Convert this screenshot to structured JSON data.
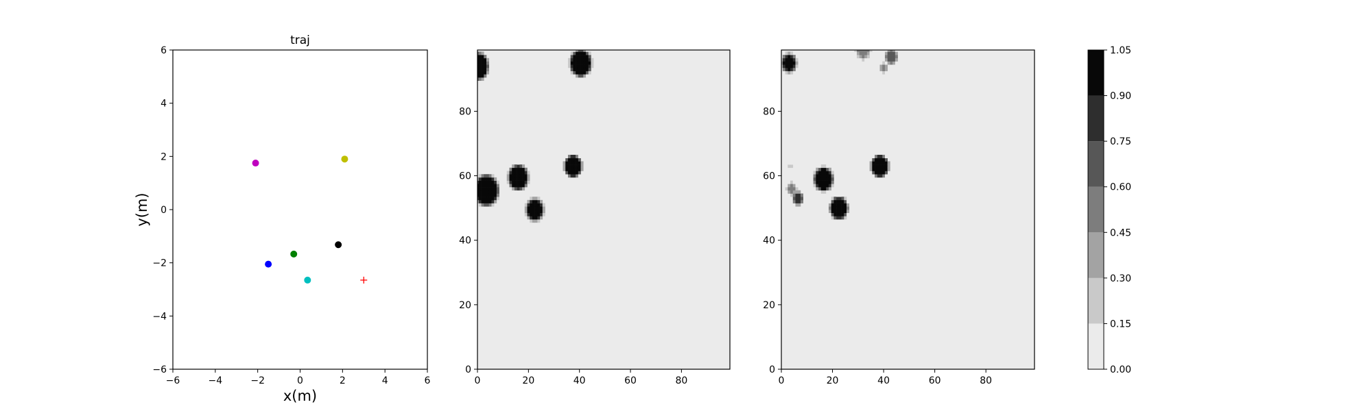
{
  "chart_data": [
    {
      "type": "scatter",
      "title": "traj",
      "xlabel": "x(m)",
      "ylabel": "y(m)",
      "xlim": [
        -6,
        6
      ],
      "ylim": [
        -6,
        6
      ],
      "xticks": [
        -6,
        -4,
        -2,
        0,
        2,
        4,
        6
      ],
      "yticks": [
        -6,
        -4,
        -2,
        0,
        2,
        4,
        6
      ],
      "xtick_labels": [
        "−6",
        "−4",
        "−2",
        "0",
        "2",
        "4",
        "6"
      ],
      "ytick_labels": [
        "−6",
        "−4",
        "−2",
        "0",
        "2",
        "4",
        "6"
      ],
      "grid": false,
      "points": [
        {
          "x": -2.1,
          "y": 1.75,
          "color": "#bf00bf",
          "marker": "circle"
        },
        {
          "x": 2.1,
          "y": 1.9,
          "color": "#bfbf00",
          "marker": "circle"
        },
        {
          "x": 1.8,
          "y": -1.32,
          "color": "#000000",
          "marker": "circle"
        },
        {
          "x": -0.3,
          "y": -1.67,
          "color": "#008000",
          "marker": "circle"
        },
        {
          "x": -1.5,
          "y": -2.05,
          "color": "#0000ff",
          "marker": "circle"
        },
        {
          "x": 0.35,
          "y": -2.65,
          "color": "#00bfbf",
          "marker": "circle"
        },
        {
          "x": 3.0,
          "y": -2.65,
          "color": "#ff0000",
          "marker": "plus"
        }
      ]
    },
    {
      "type": "heatmap",
      "title": "",
      "xlim": [
        0,
        99
      ],
      "ylim": [
        0,
        99
      ],
      "xticks": [
        0,
        20,
        40,
        60,
        80
      ],
      "yticks": [
        0,
        20,
        40,
        60,
        80
      ],
      "xtick_labels": [
        "0",
        "20",
        "40",
        "60",
        "80"
      ],
      "ytick_labels": [
        "0",
        "20",
        "40",
        "60",
        "80"
      ],
      "background_value": 0.05,
      "blobs": [
        {
          "x": 0,
          "y": 94,
          "r": 4,
          "value": 1.0
        },
        {
          "x": 40.5,
          "y": 95,
          "r": 4,
          "value": 1.0
        },
        {
          "x": 3.5,
          "y": 55.5,
          "r": 4.5,
          "value": 1.0
        },
        {
          "x": 16,
          "y": 59.5,
          "r": 3.7,
          "value": 1.0
        },
        {
          "x": 37.5,
          "y": 63,
          "r": 3.2,
          "value": 1.0
        },
        {
          "x": 22.5,
          "y": 49.5,
          "r": 3.2,
          "value": 1.0
        }
      ]
    },
    {
      "type": "heatmap",
      "title": "",
      "xlim": [
        0,
        99
      ],
      "ylim": [
        0,
        99
      ],
      "xticks": [
        0,
        20,
        40,
        60,
        80
      ],
      "yticks": [
        0,
        20,
        40,
        60,
        80
      ],
      "xtick_labels": [
        "0",
        "20",
        "40",
        "60",
        "80"
      ],
      "ytick_labels": [
        "0",
        "20",
        "40",
        "60",
        "80"
      ],
      "background_value": 0.05,
      "blobs": [
        {
          "x": 3,
          "y": 95,
          "r": 2.6,
          "value": 0.95
        },
        {
          "x": 16.5,
          "y": 59,
          "r": 3.5,
          "value": 1.0
        },
        {
          "x": 22.5,
          "y": 50,
          "r": 3.3,
          "value": 1.0
        },
        {
          "x": 38.5,
          "y": 63,
          "r": 3.2,
          "value": 1.0
        },
        {
          "x": 6.5,
          "y": 53,
          "r": 1.7,
          "value": 0.85
        },
        {
          "x": 4,
          "y": 56,
          "r": 1.6,
          "value": 0.45
        },
        {
          "x": 3.5,
          "y": 63,
          "r": 0.6,
          "value": 0.3
        },
        {
          "x": 43,
          "y": 97,
          "r": 2.1,
          "value": 0.7
        },
        {
          "x": 32,
          "y": 99,
          "r": 2.6,
          "value": 0.45
        },
        {
          "x": 40,
          "y": 93.5,
          "r": 1.3,
          "value": 0.5
        }
      ]
    }
  ],
  "colorbar": {
    "levels": [
      0.0,
      0.15,
      0.3,
      0.45,
      0.6,
      0.75,
      0.9,
      1.05
    ],
    "tick_labels": [
      "0.00",
      "0.15",
      "0.30",
      "0.45",
      "0.60",
      "0.75",
      "0.90",
      "1.05"
    ],
    "colors": [
      "#ebebeb",
      "#c9c9c9",
      "#a3a3a3",
      "#7d7d7d",
      "#575757",
      "#2e2e2e",
      "#080808"
    ]
  }
}
